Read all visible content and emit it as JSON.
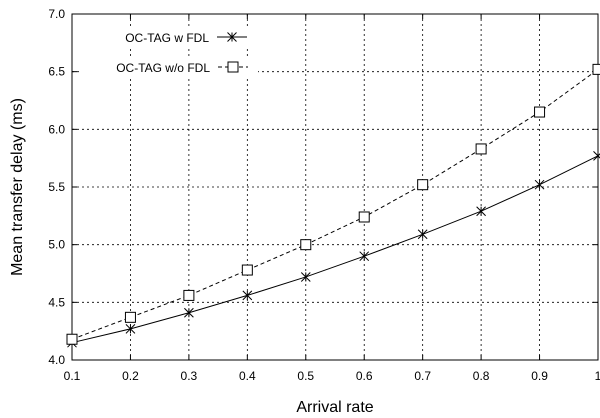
{
  "chart_data": {
    "type": "line",
    "xlabel": "Arrival rate",
    "ylabel": "Mean transfer delay (ms)",
    "xlim": [
      0.1,
      1.0
    ],
    "ylim": [
      4.0,
      7.0
    ],
    "x_ticks": [
      0.1,
      0.2,
      0.3,
      0.4,
      0.5,
      0.6,
      0.7,
      0.8,
      0.9,
      1.0
    ],
    "x_tick_labels": [
      "0.1",
      "0.2",
      "0.3",
      "0.4",
      "0.5",
      "0.6",
      "0.7",
      "0.8",
      "0.9",
      "1"
    ],
    "y_ticks": [
      4.0,
      4.5,
      5.0,
      5.5,
      6.0,
      6.5,
      7.0
    ],
    "y_tick_labels": [
      "4.0",
      "4.5",
      "5.0",
      "5.5",
      "6.0",
      "6.5",
      "7.0"
    ],
    "grid": true,
    "legend_position": "top-left",
    "x": [
      0.1,
      0.2,
      0.3,
      0.4,
      0.5,
      0.6,
      0.7,
      0.8,
      0.9,
      1.0
    ],
    "series": [
      {
        "name": "OC-TAG w FDL",
        "values": [
          4.15,
          4.27,
          4.41,
          4.56,
          4.72,
          4.9,
          5.09,
          5.29,
          5.52,
          5.77
        ],
        "line_style": "solid",
        "marker": "x-star",
        "color": "#000000"
      },
      {
        "name": "OC-TAG w/o FDL",
        "values": [
          4.18,
          4.37,
          4.56,
          4.78,
          5.0,
          5.24,
          5.52,
          5.83,
          6.15,
          6.52
        ],
        "line_style": "dashed",
        "marker": "open-square",
        "color": "#000000"
      }
    ]
  }
}
